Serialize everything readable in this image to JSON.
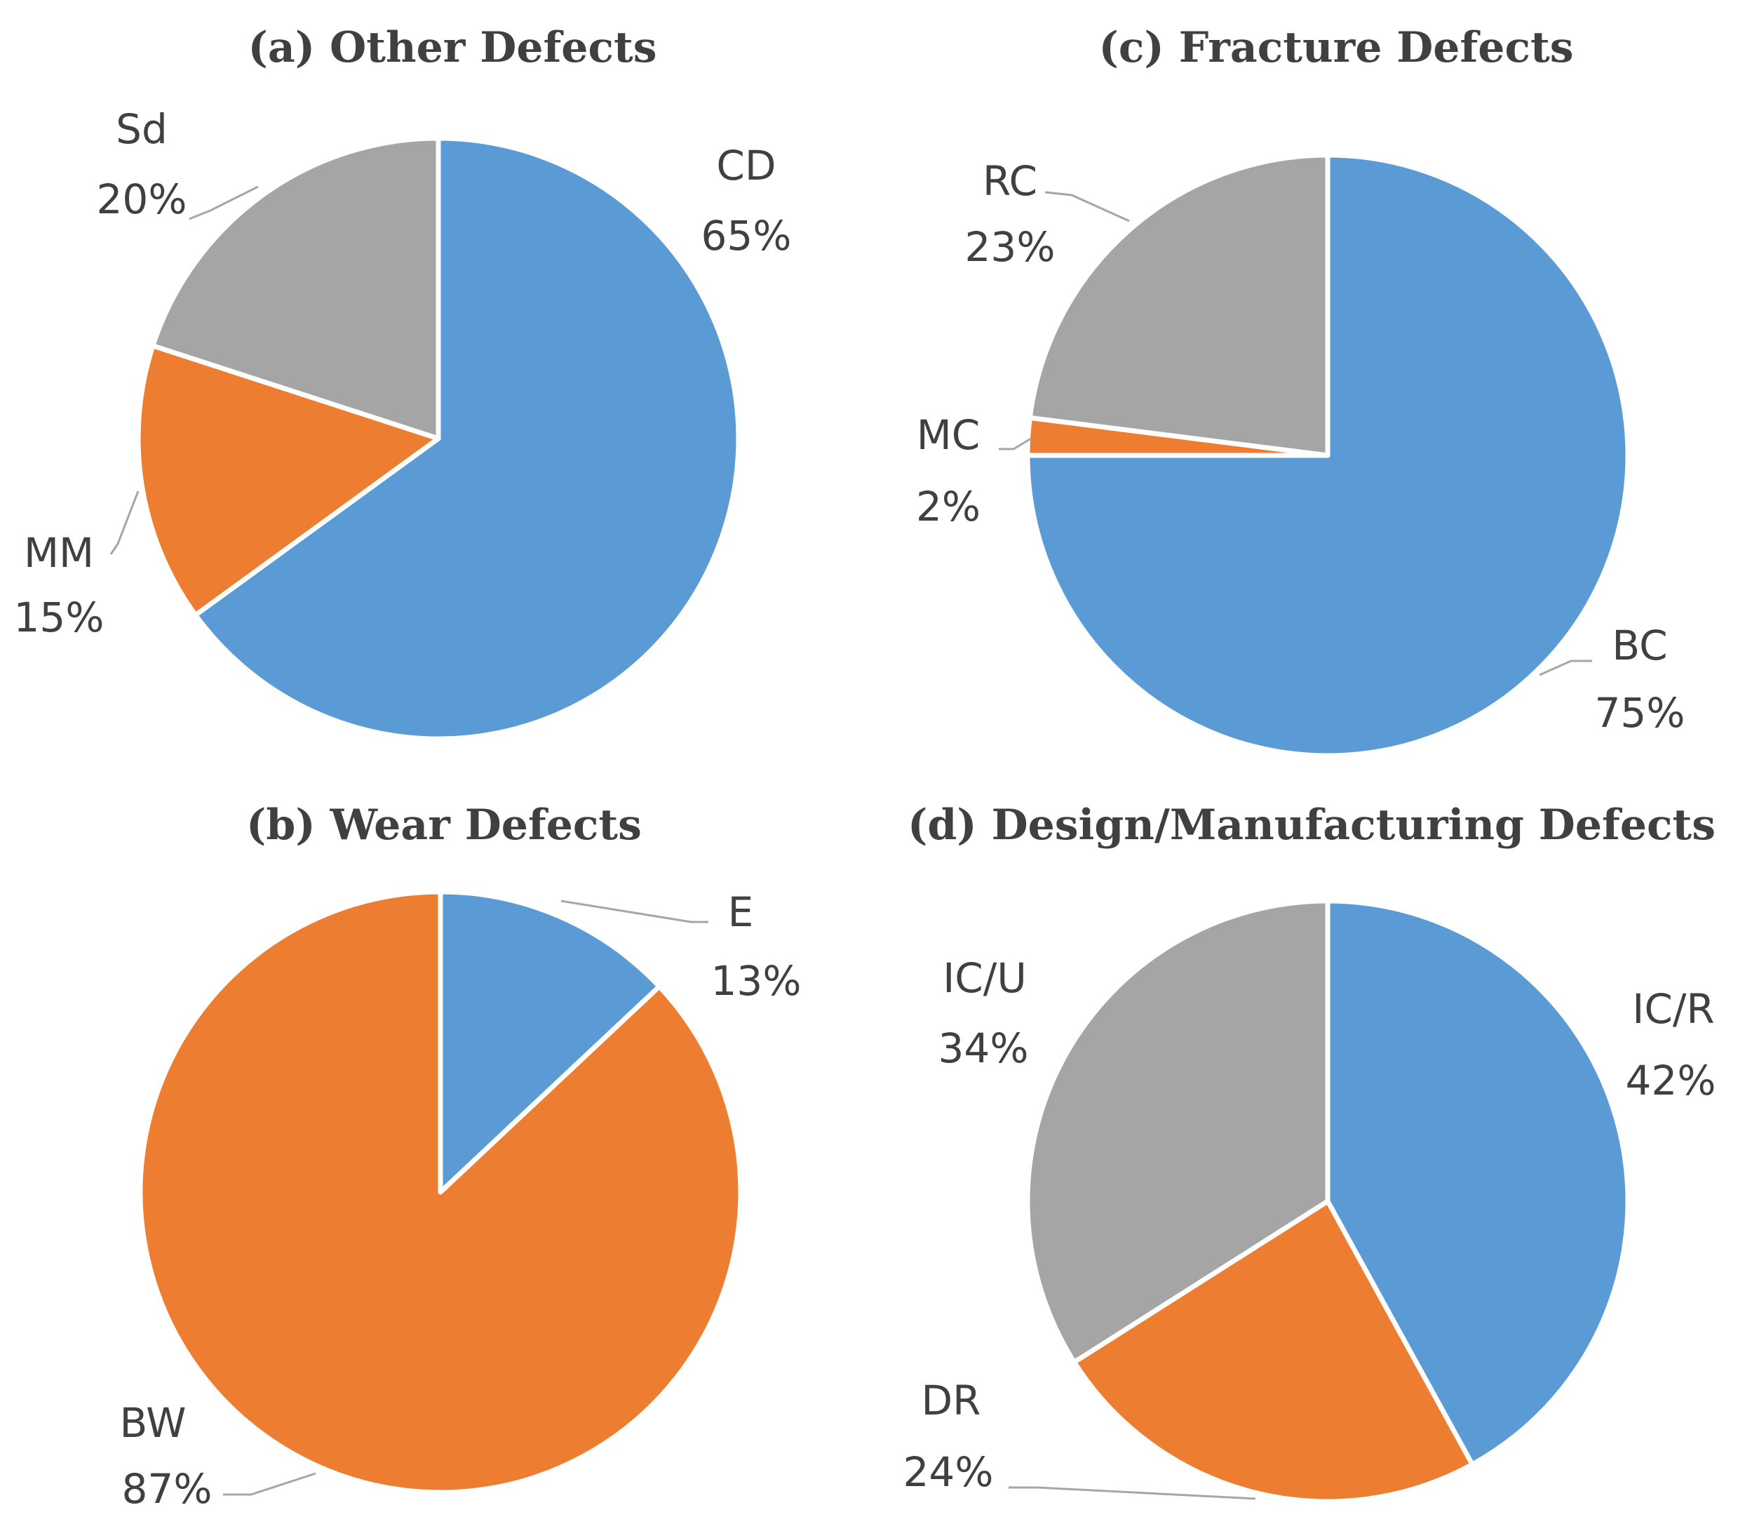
{
  "chart_data": [
    {
      "type": "pie",
      "id": "a",
      "title": "(a) Other Defects",
      "slices": [
        {
          "label": "CD",
          "value": 65,
          "pct_label": "65%",
          "color": "#5b9bd5"
        },
        {
          "label": "MM",
          "value": 15,
          "pct_label": "15%",
          "color": "#ed7d31"
        },
        {
          "label": "Sd",
          "value": 20,
          "pct_label": "20%",
          "color": "#a5a5a5"
        }
      ]
    },
    {
      "type": "pie",
      "id": "b",
      "title": "(b) Wear Defects",
      "slices": [
        {
          "label": "E",
          "value": 13,
          "pct_label": "13%",
          "color": "#5b9bd5"
        },
        {
          "label": "BW",
          "value": 87,
          "pct_label": "87%",
          "color": "#ed7d31"
        }
      ]
    },
    {
      "type": "pie",
      "id": "c",
      "title": "(c) Fracture Defects",
      "slices": [
        {
          "label": "BC",
          "value": 75,
          "pct_label": "75%",
          "color": "#5b9bd5"
        },
        {
          "label": "MC",
          "value": 2,
          "pct_label": "2%",
          "color": "#ed7d31"
        },
        {
          "label": "RC",
          "value": 23,
          "pct_label": "23%",
          "color": "#a5a5a5"
        }
      ]
    },
    {
      "type": "pie",
      "id": "d",
      "title": "(d) Design/Manufacturing Defects",
      "slices": [
        {
          "label": "IC/R",
          "value": 42,
          "pct_label": "42%",
          "color": "#5b9bd5"
        },
        {
          "label": "DR",
          "value": 24,
          "pct_label": "24%",
          "color": "#ed7d31"
        },
        {
          "label": "IC/U",
          "value": 34,
          "pct_label": "34%",
          "color": "#a5a5a5"
        }
      ]
    }
  ]
}
